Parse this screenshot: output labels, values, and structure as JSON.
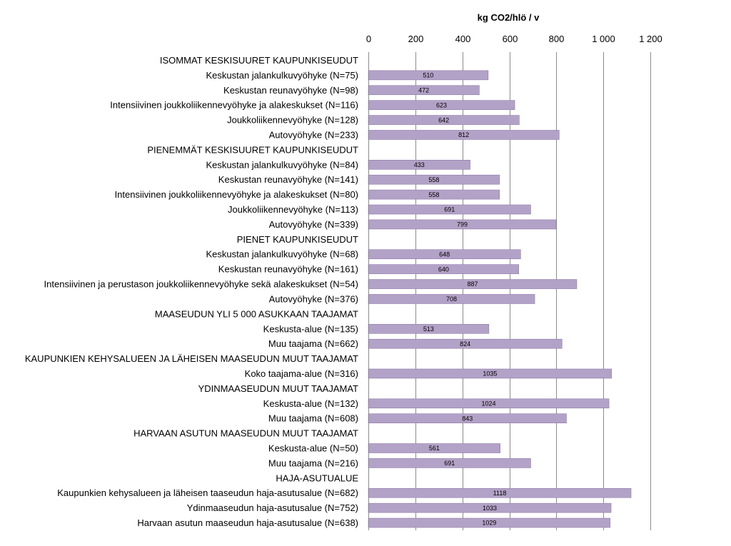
{
  "chart_data": {
    "type": "bar",
    "orientation": "horizontal",
    "title": "",
    "xlabel": "kg CO2/hlö / v",
    "ylabel": "",
    "xlim": [
      0,
      1200
    ],
    "xticks": [
      0,
      200,
      400,
      600,
      800,
      1000,
      1200
    ],
    "xtick_labels": [
      "0",
      "200",
      "400",
      "600",
      "800",
      "1 000",
      "1 200"
    ],
    "grid": true,
    "bar_color": "#b3a2c7",
    "bar_border_color": "#8e7aab",
    "categories": [
      {
        "label": "ISOMMAT KESKISUURET KAUPUNKISEUDUT",
        "value": null
      },
      {
        "label": "Keskustan jalankulkuvyöhyke (N=75)",
        "value": 510
      },
      {
        "label": "Keskustan reunavyöhyke (N=98)",
        "value": 472
      },
      {
        "label": "Intensiivinen joukkoliikennevyöhyke ja alakeskukset (N=116)",
        "value": 623
      },
      {
        "label": "Joukkoliikennevyöhyke (N=128)",
        "value": 642
      },
      {
        "label": "Autovyöhyke (N=233)",
        "value": 812
      },
      {
        "label": "PIENEMMÄT KESKISUURET KAUPUNKISEUDUT",
        "value": null
      },
      {
        "label": "Keskustan jalankulkuvyöhyke (N=84)",
        "value": 433
      },
      {
        "label": "Keskustan reunavyöhyke (N=141)",
        "value": 558
      },
      {
        "label": "Intensiivinen joukkoliikennevyöhyke ja alakeskukset (N=80)",
        "value": 558
      },
      {
        "label": "Joukkoliikennevyöhyke (N=113)",
        "value": 691
      },
      {
        "label": "Autovyöhyke (N=339)",
        "value": 799
      },
      {
        "label": "PIENET KAUPUNKISEUDUT",
        "value": null
      },
      {
        "label": "Keskustan jalankulkuvyöhyke (N=68)",
        "value": 648
      },
      {
        "label": "Keskustan reunavyöhyke (N=161)",
        "value": 640
      },
      {
        "label": "Intensiivinen ja  perustason joukkoliikennevyöhyke sekä alakeskukset (N=54)",
        "value": 887
      },
      {
        "label": "Autovyöhyke (N=376)",
        "value": 708
      },
      {
        "label": "MAASEUDUN YLI 5 000 ASUKKAAN TAAJAMAT",
        "value": null
      },
      {
        "label": "Keskusta-alue (N=135)",
        "value": 513
      },
      {
        "label": "Muu taajama (N=662)",
        "value": 824
      },
      {
        "label": "KAUPUNKIEN KEHYSALUEEN JA LÄHEISEN MAASEUDUN MUUT TAAJAMAT",
        "value": null
      },
      {
        "label": "Koko taajama-alue (N=316)",
        "value": 1035
      },
      {
        "label": "YDINMAASEUDUN MUUT TAAJAMAT",
        "value": null
      },
      {
        "label": "Keskusta-alue (N=132)",
        "value": 1024
      },
      {
        "label": "Muu taajama (N=608)",
        "value": 843
      },
      {
        "label": "HARVAAN ASUTUN MAASEUDUN MUUT TAAJAMAT",
        "value": null
      },
      {
        "label": "Keskusta-alue (N=50)",
        "value": 561
      },
      {
        "label": "Muu taajama (N=216)",
        "value": 691
      },
      {
        "label": "HAJA-ASUTUALUE",
        "value": null
      },
      {
        "label": "Kaupunkien kehysalueen ja läheisen taaseudun haja-asutusalue (N=682)",
        "value": 1118
      },
      {
        "label": "Ydinmaaseudun haja-asutusalue (N=752)",
        "value": 1033
      },
      {
        "label": "Harvaan asutun maaseudun haja-asutusalue (N=638)",
        "value": 1029
      }
    ]
  }
}
